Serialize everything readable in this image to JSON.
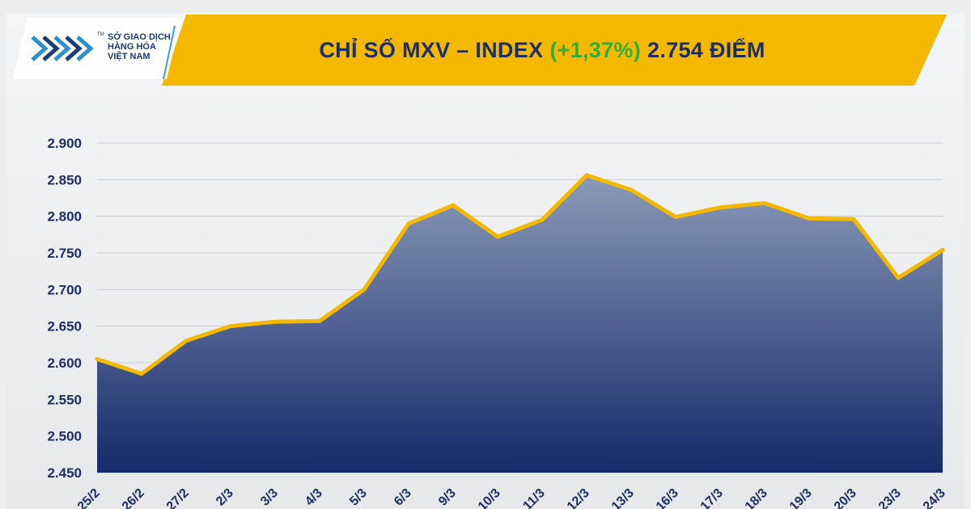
{
  "header": {
    "title_prefix": "CHỈ SỐ MXV – INDEX",
    "title_change": "(+1,37%)",
    "title_suffix": "2.754 ĐIỂM",
    "banner_color": "#f5b800",
    "change_color": "#2fae3a",
    "title_color": "#1c2f63"
  },
  "logo": {
    "icon": "mxv-logo-icon",
    "line1": "SỞ GIAO DỊCH",
    "line2": "HÀNG HÓA",
    "line3": "VIỆT NAM",
    "tm": "TM"
  },
  "chart_data": {
    "type": "area",
    "title": "",
    "xlabel": "",
    "ylabel": "",
    "categories": [
      "25/2",
      "26/2",
      "27/2",
      "2/3",
      "3/3",
      "4/3",
      "5/3",
      "6/3",
      "9/3",
      "10/3",
      "11/3",
      "12/3",
      "13/3",
      "16/3",
      "17/3",
      "18/3",
      "19/3",
      "20/3",
      "23/3",
      "24/3"
    ],
    "series": [
      {
        "values": [
          2605,
          2585,
          2630,
          2650,
          2656,
          2657,
          2700,
          2790,
          2815,
          2772,
          2795,
          2856,
          2836,
          2799,
          2812,
          2818,
          2797,
          2796,
          2716,
          2754
        ]
      }
    ],
    "ylim": [
      2450,
      2900
    ],
    "yticks": [
      "2.450",
      "2.500",
      "2.550",
      "2.600",
      "2.650",
      "2.700",
      "2.750",
      "2.800",
      "2.850",
      "2.900"
    ],
    "yticks_values": [
      2450,
      2500,
      2550,
      2600,
      2650,
      2700,
      2750,
      2800,
      2850,
      2900
    ],
    "grid": true,
    "legend": "none",
    "line_color": "#f5b800",
    "fill_top_color": "#8a9ab8",
    "fill_bottom_color": "#16296a"
  }
}
